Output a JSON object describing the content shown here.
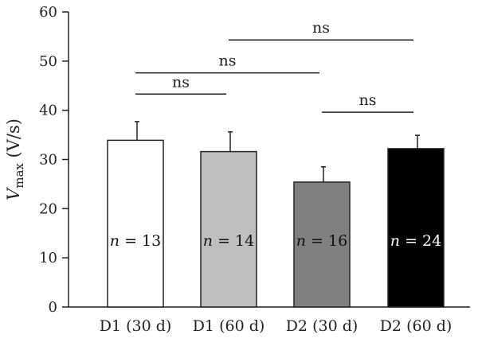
{
  "chart_data": {
    "type": "bar",
    "categories": [
      "D1 (30 d)",
      "D1 (60 d)",
      "D2 (30 d)",
      "D2 (60 d)"
    ],
    "values": [
      33.9,
      31.6,
      25.4,
      32.2
    ],
    "errors": [
      3.8,
      4.0,
      3.1,
      2.7
    ],
    "bar_colors": [
      "#ffffff",
      "#bfbfbf",
      "#808080",
      "#000000"
    ],
    "n_labels": [
      {
        "italic": "n",
        "rest": " = 13",
        "color": "#111111"
      },
      {
        "italic": "n",
        "rest": " = 14",
        "color": "#111111"
      },
      {
        "italic": "n",
        "rest": " = 16",
        "color": "#111111"
      },
      {
        "italic": "n",
        "rest": " = 24",
        "color": "#ffffff"
      }
    ],
    "ylabel": {
      "main": "V",
      "sub": "max",
      "unit": " (V/s)"
    },
    "ylim": [
      0,
      60
    ],
    "yticks": [
      0,
      10,
      20,
      30,
      40,
      50,
      60
    ],
    "grid": false,
    "comparisons": [
      {
        "from": 0,
        "to": 1,
        "y": 43.3,
        "label": "ns"
      },
      {
        "from": 2,
        "to": 3,
        "y": 39.6,
        "label": "ns"
      },
      {
        "from": 0,
        "to": 2,
        "y": 47.6,
        "label": "ns"
      },
      {
        "from": 1,
        "to": 3,
        "y": 54.3,
        "label": "ns"
      }
    ]
  }
}
